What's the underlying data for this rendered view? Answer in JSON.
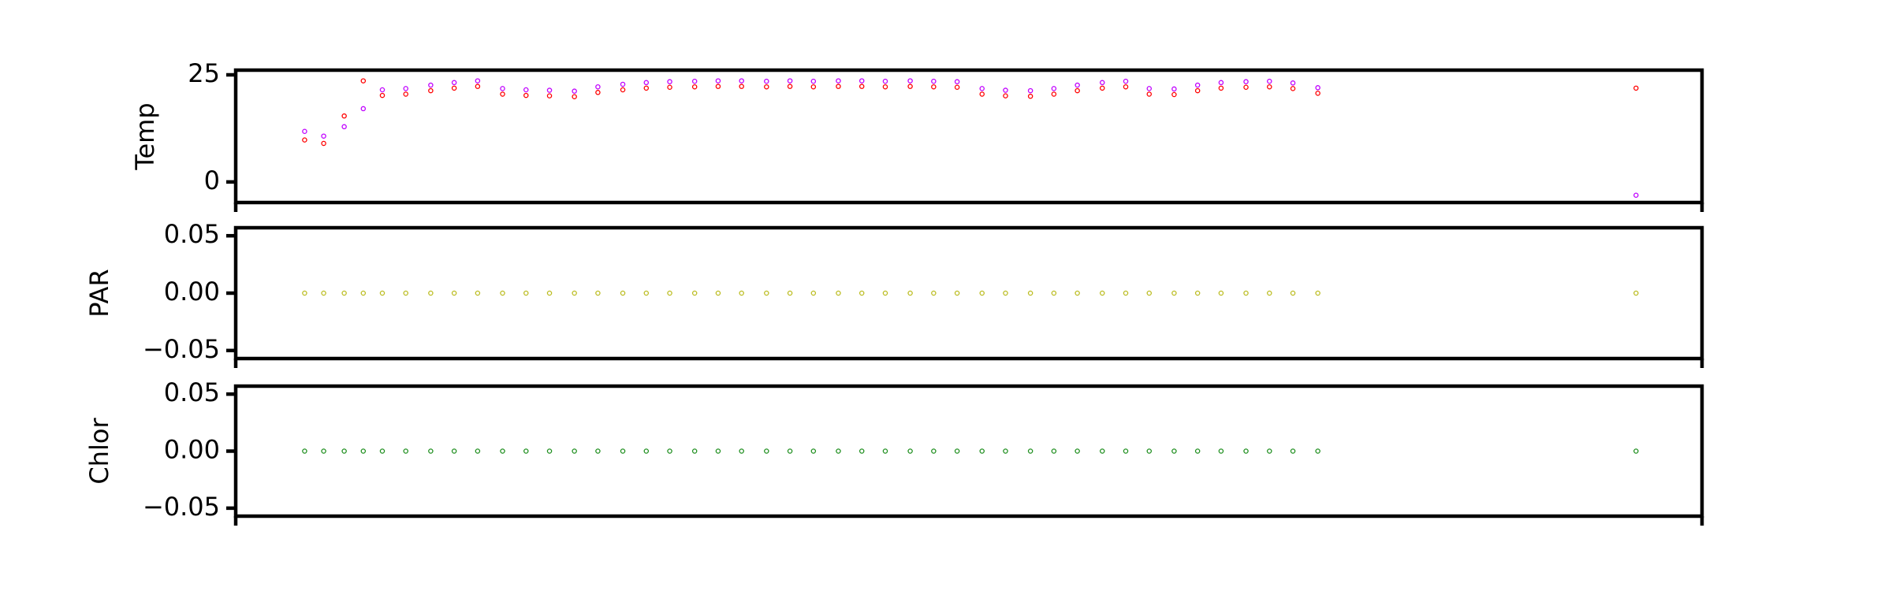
{
  "chart_data": [
    {
      "type": "scatter",
      "ylabel": "Temp",
      "x": [
        4.7,
        6.0,
        7.4,
        8.7,
        10.0,
        11.6,
        13.3,
        14.9,
        16.5,
        18.2,
        19.8,
        21.4,
        23.1,
        24.7,
        26.4,
        28.0,
        29.6,
        31.3,
        32.9,
        34.5,
        36.2,
        37.8,
        39.4,
        41.1,
        42.7,
        44.3,
        46.0,
        47.6,
        49.2,
        50.9,
        52.5,
        54.2,
        55.8,
        57.4,
        59.1,
        60.7,
        62.3,
        64.0,
        65.6,
        67.2,
        68.9,
        70.5,
        72.1,
        73.8,
        95.5
      ],
      "xlim": [
        0,
        100
      ],
      "ylim": [
        -4.8,
        26.1
      ],
      "yticks": [
        0,
        25
      ],
      "series": [
        {
          "color": "#ff0000",
          "values": [
            9.8,
            9.0,
            15.4,
            23.6,
            20.2,
            20.5,
            21.3,
            21.9,
            22.3,
            20.5,
            20.2,
            20.1,
            19.9,
            20.9,
            21.5,
            21.9,
            22.1,
            22.2,
            22.3,
            22.3,
            22.2,
            22.3,
            22.2,
            22.3,
            22.3,
            22.2,
            22.3,
            22.2,
            22.1,
            20.5,
            20.1,
            20.0,
            20.5,
            21.3,
            21.9,
            22.2,
            20.5,
            20.4,
            21.3,
            21.9,
            22.1,
            22.2,
            21.8,
            20.7,
            21.9
          ]
        },
        {
          "color": "#c000ff",
          "values": [
            11.8,
            10.7,
            12.9,
            17.1,
            21.5,
            21.8,
            22.6,
            23.2,
            23.6,
            21.8,
            21.5,
            21.4,
            21.2,
            22.2,
            22.8,
            23.2,
            23.4,
            23.5,
            23.6,
            23.6,
            23.5,
            23.6,
            23.5,
            23.6,
            23.6,
            23.5,
            23.6,
            23.5,
            23.4,
            21.8,
            21.4,
            21.3,
            21.8,
            22.6,
            23.2,
            23.5,
            21.8,
            21.7,
            22.6,
            23.2,
            23.4,
            23.5,
            23.1,
            22.0,
            -3.1
          ]
        }
      ]
    },
    {
      "type": "scatter",
      "ylabel": "PAR",
      "x": [
        4.7,
        6.0,
        7.4,
        8.7,
        10.0,
        11.6,
        13.3,
        14.9,
        16.5,
        18.2,
        19.8,
        21.4,
        23.1,
        24.7,
        26.4,
        28.0,
        29.6,
        31.3,
        32.9,
        34.5,
        36.2,
        37.8,
        39.4,
        41.1,
        42.7,
        44.3,
        46.0,
        47.6,
        49.2,
        50.9,
        52.5,
        54.2,
        55.8,
        57.4,
        59.1,
        60.7,
        62.3,
        64.0,
        65.6,
        67.2,
        68.9,
        70.5,
        72.1,
        73.8,
        95.5
      ],
      "xlim": [
        0,
        100
      ],
      "ylim": [
        -0.057,
        0.057
      ],
      "yticks": [
        {
          "value": -0.05,
          "label": "−0.05"
        },
        {
          "value": 0,
          "label": "0.00"
        },
        0.05
      ],
      "series": [
        {
          "color": "#bcbd22",
          "values": [
            0,
            0,
            0,
            0,
            0,
            0,
            0,
            0,
            0,
            0,
            0,
            0,
            0,
            0,
            0,
            0,
            0,
            0,
            0,
            0,
            0,
            0,
            0,
            0,
            0,
            0,
            0,
            0,
            0,
            0,
            0,
            0,
            0,
            0,
            0,
            0,
            0,
            0,
            0,
            0,
            0,
            0,
            0,
            0,
            0
          ]
        }
      ]
    },
    {
      "type": "scatter",
      "ylabel": "Chlor",
      "x": [
        4.7,
        6.0,
        7.4,
        8.7,
        10.0,
        11.6,
        13.3,
        14.9,
        16.5,
        18.2,
        19.8,
        21.4,
        23.1,
        24.7,
        26.4,
        28.0,
        29.6,
        31.3,
        32.9,
        34.5,
        36.2,
        37.8,
        39.4,
        41.1,
        42.7,
        44.3,
        46.0,
        47.6,
        49.2,
        50.9,
        52.5,
        54.2,
        55.8,
        57.4,
        59.1,
        60.7,
        62.3,
        64.0,
        65.6,
        67.2,
        68.9,
        70.5,
        72.1,
        73.8,
        95.5
      ],
      "xlim": [
        0,
        100
      ],
      "ylim": [
        -0.057,
        0.057
      ],
      "yticks": [
        {
          "value": -0.05,
          "label": "−0.05"
        },
        {
          "value": 0,
          "label": "0.00"
        },
        0.05
      ],
      "series": [
        {
          "color": "#1f8f1f",
          "values": [
            0,
            0,
            0,
            0,
            0,
            0,
            0,
            0,
            0,
            0,
            0,
            0,
            0,
            0,
            0,
            0,
            0,
            0,
            0,
            0,
            0,
            0,
            0,
            0,
            0,
            0,
            0,
            0,
            0,
            0,
            0,
            0,
            0,
            0,
            0,
            0,
            0,
            0,
            0,
            0,
            0,
            0,
            0,
            0,
            0
          ]
        }
      ]
    }
  ]
}
